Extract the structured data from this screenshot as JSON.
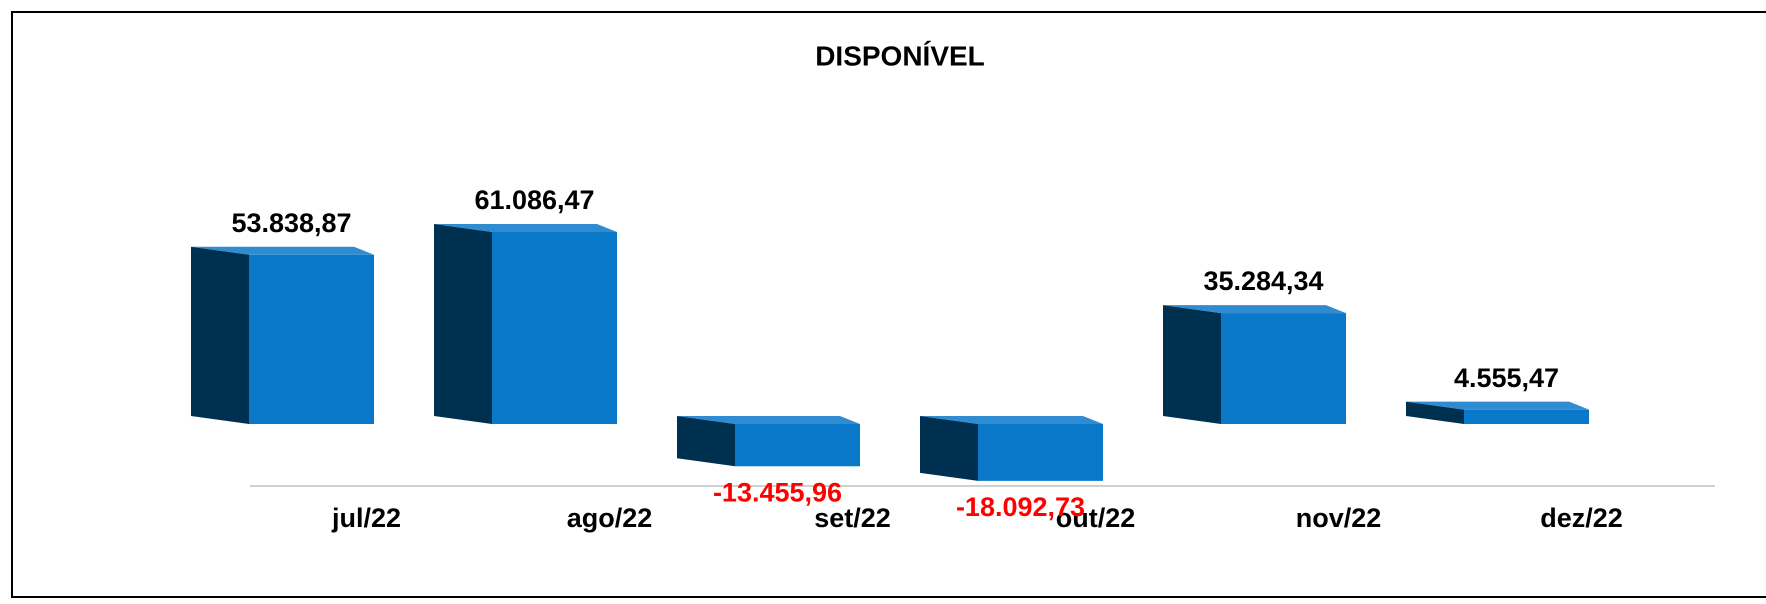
{
  "chart_data": {
    "type": "bar3d",
    "title": "DISPONÍVEL",
    "categories": [
      "jul/22",
      "ago/22",
      "set/22",
      "out/22",
      "nov/22",
      "dez/22"
    ],
    "values": [
      53838.87,
      61086.47,
      -13455.96,
      -18092.73,
      35284.34,
      4555.47
    ],
    "value_labels": [
      "53.838,87",
      "61.086,47",
      "-13.455,96",
      "-18.092,73",
      "35.284,34",
      "4.555,47"
    ],
    "color": "#0a78c8",
    "side_color": "#00304f",
    "label_color": "#000000",
    "negative_label_color": "#ff0000"
  }
}
